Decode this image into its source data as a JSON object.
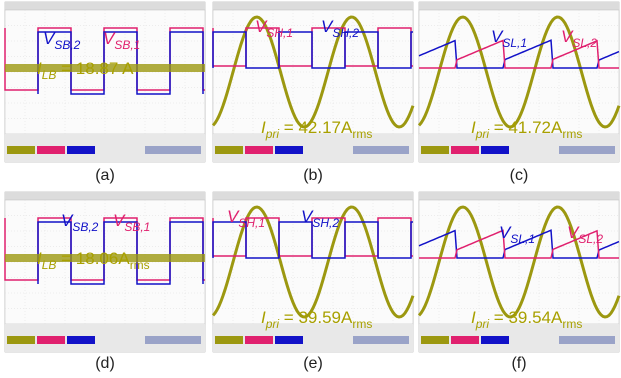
{
  "panels": [
    {
      "caption": "(a)",
      "labels": [
        {
          "main": "V",
          "sub": "SB,2",
          "color": "#1212c8"
        },
        {
          "main": "V",
          "sub": "SB,1",
          "color": "#e0206e"
        }
      ],
      "current": {
        "main": "I",
        "sub": "LB",
        "text": " = 18.87 A"
      }
    },
    {
      "caption": "(b)",
      "labels": [
        {
          "main": "V",
          "sub": "SH,1",
          "color": "#e0206e"
        },
        {
          "main": "V",
          "sub": "SH,2",
          "color": "#1212c8"
        }
      ],
      "current": {
        "main": "I",
        "sub": "pri",
        "text": " = 42.17A",
        "unit": "rms"
      }
    },
    {
      "caption": "(c)",
      "labels": [
        {
          "main": "V",
          "sub": "SL,1",
          "color": "#1212c8"
        },
        {
          "main": "V",
          "sub": "SL,2",
          "color": "#e0206e"
        }
      ],
      "current": {
        "main": "I",
        "sub": "pri",
        "text": " = 41.72A",
        "unit": "rms"
      }
    },
    {
      "caption": "(d)",
      "labels": [
        {
          "main": "V",
          "sub": "SB,2",
          "color": "#1212c8"
        },
        {
          "main": "V",
          "sub": "SB,1",
          "color": "#e0206e"
        }
      ],
      "current": {
        "main": "I",
        "sub": "LB",
        "text": " = 18.06A",
        "unit": "rms"
      }
    },
    {
      "caption": "(e)",
      "labels": [
        {
          "main": "V",
          "sub": "SH,1",
          "color": "#e0206e"
        },
        {
          "main": "V",
          "sub": "SH,2",
          "color": "#1212c8"
        }
      ],
      "current": {
        "main": "I",
        "sub": "pri",
        "text": " = 39.59A",
        "unit": "rms"
      }
    },
    {
      "caption": "(f)",
      "labels": [
        {
          "main": "V",
          "sub": "SL,1",
          "color": "#1212c8"
        },
        {
          "main": "V",
          "sub": "SL,2",
          "color": "#e0206e"
        }
      ],
      "current": {
        "main": "I",
        "sub": "pri",
        "text": " = 39.54A",
        "unit": "rms"
      }
    }
  ]
}
